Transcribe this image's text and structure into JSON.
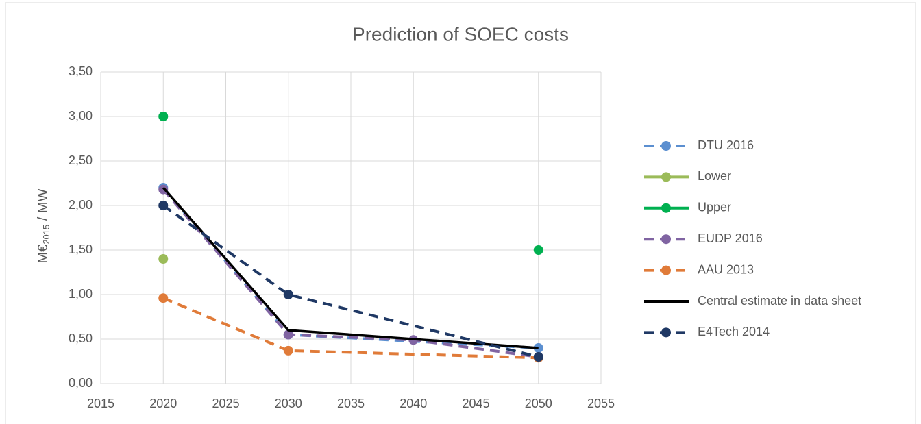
{
  "chart_data": {
    "type": "line",
    "title": "Prediction of SOEC costs",
    "ylabel_parts": [
      "M€",
      "2015",
      " / MW"
    ],
    "xlim": [
      2015,
      2055
    ],
    "xticks": [
      2015,
      2020,
      2025,
      2030,
      2035,
      2040,
      2045,
      2050,
      2055
    ],
    "ylim": [
      0,
      3.5
    ],
    "yticks": [
      {
        "value": 0,
        "label": "0,00"
      },
      {
        "value": 0.5,
        "label": "0,50"
      },
      {
        "value": 1,
        "label": "1,00"
      },
      {
        "value": 1.5,
        "label": "1,50"
      },
      {
        "value": 2,
        "label": "2,00"
      },
      {
        "value": 2.5,
        "label": "2,50"
      },
      {
        "value": 3,
        "label": "3,00"
      },
      {
        "value": 3.5,
        "label": "3,50"
      }
    ],
    "grid": true,
    "legend": "right",
    "series": [
      {
        "name": "DTU 2016",
        "color": "#5b8fd0",
        "dashed": true,
        "markers": true,
        "x": [
          2020,
          2030,
          2050
        ],
        "values": [
          2.2,
          0.55,
          0.4
        ]
      },
      {
        "name": "Lower",
        "color": "#9bbb59",
        "dashed": false,
        "markers": true,
        "x": [
          2020
        ],
        "values": [
          1.4
        ]
      },
      {
        "name": "Upper",
        "color": "#00b050",
        "dashed": false,
        "markers": true,
        "x": [
          2020,
          2030,
          2050
        ],
        "values": [
          3.0,
          null,
          1.5
        ]
      },
      {
        "name": "EUDP 2016",
        "color": "#8064a2",
        "dashed": true,
        "markers": true,
        "x": [
          2020,
          2030,
          2040,
          2050
        ],
        "values": [
          2.18,
          0.55,
          0.49,
          0.3
        ]
      },
      {
        "name": "AAU 2013",
        "color": "#e07b39",
        "dashed": true,
        "markers": true,
        "x": [
          2020,
          2030,
          2050
        ],
        "values": [
          0.96,
          0.37,
          0.29
        ]
      },
      {
        "name": "Central estimate in data sheet",
        "color": "#000000",
        "dashed": false,
        "markers": false,
        "x": [
          2020,
          2030,
          2050
        ],
        "values": [
          2.2,
          0.6,
          0.4
        ]
      },
      {
        "name": "E4Tech 2014",
        "color": "#1f3864",
        "dashed": true,
        "markers": true,
        "x": [
          2020,
          2030,
          2050
        ],
        "values": [
          2.0,
          1.0,
          0.3
        ]
      }
    ]
  }
}
